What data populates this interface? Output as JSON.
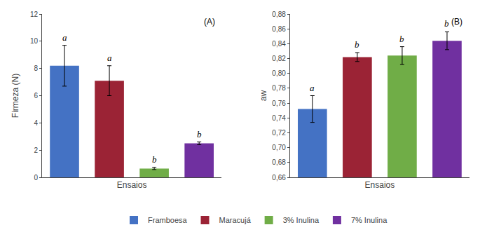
{
  "chart_data": [
    {
      "type": "bar",
      "title": "(A)",
      "categories": [
        "Framboesa",
        "Maracujá",
        "3% Inulina",
        "7% Inulina"
      ],
      "values": [
        8.2,
        7.1,
        0.65,
        2.5
      ],
      "errors": [
        1.5,
        1.1,
        0.08,
        0.1
      ],
      "colors": [
        "#4472C4",
        "#9B2335",
        "#70AD47",
        "#7030A0"
      ],
      "annotations": [
        "a",
        "a",
        "b",
        "b"
      ],
      "xlabel": "Ensaios",
      "ylabel": "Firmeza (N)",
      "ylim": [
        0,
        12
      ],
      "yticks": [
        0,
        2,
        4,
        6,
        8,
        10,
        12
      ],
      "grid": false,
      "legend": "bottom",
      "tick_labels": "y"
    },
    {
      "type": "bar",
      "title": "(B)",
      "categories": [
        "Framboesa",
        "Maracujá",
        "3% Inulina",
        "7% Inulina"
      ],
      "values": [
        0.752,
        0.822,
        0.824,
        0.844
      ],
      "errors": [
        0.018,
        0.006,
        0.012,
        0.012
      ],
      "colors": [
        "#4472C4",
        "#9B2335",
        "#70AD47",
        "#7030A0"
      ],
      "annotations": [
        "a",
        "b",
        "b",
        "b"
      ],
      "xlabel": "Ensaios",
      "ylabel": "aw",
      "ylim": [
        0.66,
        0.88
      ],
      "yticks": [
        {
          "value": 0.66,
          "label": "0,66"
        },
        {
          "value": 0.68,
          "label": "0,68"
        },
        {
          "value": 0.7,
          "label": "0,70"
        },
        {
          "value": 0.72,
          "label": "0,72"
        },
        {
          "value": 0.74,
          "label": "0,74"
        },
        {
          "value": 0.76,
          "label": "0,76"
        },
        {
          "value": 0.78,
          "label": "0,78"
        },
        {
          "value": 0.8,
          "label": "0,80"
        },
        {
          "value": 0.82,
          "label": "0,82"
        },
        {
          "value": 0.84,
          "label": "0,84"
        },
        {
          "value": 0.86,
          "label": "0,86"
        },
        {
          "value": 0.88,
          "label": "0,88"
        }
      ],
      "grid": false,
      "legend": "bottom",
      "tick_labels": "y"
    }
  ]
}
